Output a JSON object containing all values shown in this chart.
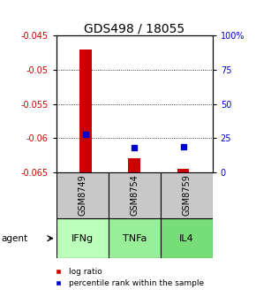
{
  "title": "GDS498 / 18055",
  "samples": [
    "GSM8749",
    "GSM8754",
    "GSM8759"
  ],
  "agents": [
    "IFNg",
    "TNFa",
    "IL4"
  ],
  "log_ratios": [
    -0.047,
    -0.063,
    -0.0645
  ],
  "log_ratio_base": -0.065,
  "percentile_ranks": [
    28,
    18,
    19
  ],
  "ylim_left": [
    -0.065,
    -0.045
  ],
  "ylim_right": [
    0,
    100
  ],
  "yticks_left": [
    -0.065,
    -0.06,
    -0.055,
    -0.05,
    -0.045
  ],
  "yticks_right": [
    0,
    25,
    50,
    75,
    100
  ],
  "ytick_labels_left": [
    "-0.065",
    "-0.06",
    "-0.055",
    "-0.05",
    "-0.045"
  ],
  "ytick_labels_right": [
    "0",
    "25",
    "50",
    "75",
    "100%"
  ],
  "bar_color": "#cc0000",
  "dot_color": "#0000cc",
  "sample_box_color": "#c8c8c8",
  "agent_box_color_1": "#bbffbb",
  "agent_box_color_2": "#99ee99",
  "agent_box_color_3": "#77dd77",
  "title_fontsize": 10,
  "tick_fontsize": 7,
  "sample_fontsize": 7,
  "agent_fontsize": 8,
  "legend_fontsize": 6.5
}
